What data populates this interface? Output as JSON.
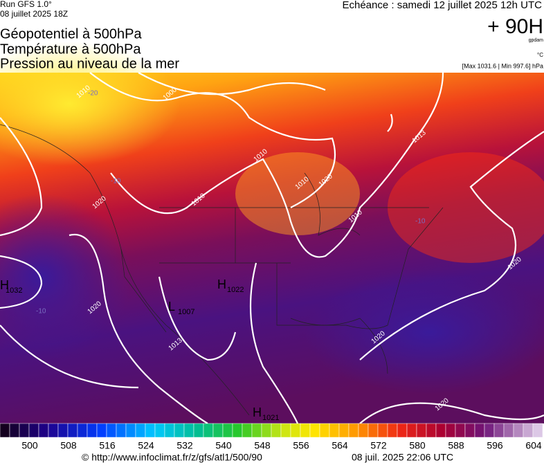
{
  "header": {
    "run": "Run GFS 1.0°",
    "run_date": "08 juillet 2025 18Z",
    "titles": [
      "Géopotentiel à 500hPa",
      "Température à 500hPa",
      "Pression au niveau de la mer"
    ],
    "valid": "Echéance : samedi 12 juillet 2025 12h UTC",
    "lead": "+ 90H",
    "unit_geo": "gpdam",
    "unit_temp": "°C",
    "range": "[Max 1031.6 | Min 997.6] hPa"
  },
  "map": {
    "centers": [
      {
        "letter": "H",
        "value": "1032"
      },
      {
        "letter": "L",
        "value": "1007"
      },
      {
        "letter": "H",
        "value": "1022"
      },
      {
        "letter": "H",
        "value": "1021"
      }
    ],
    "isobar_labels": [
      "1000",
      "1010",
      "1010",
      "1020",
      "1013",
      "1010",
      "1010",
      "1010",
      "1020",
      "1020",
      "1020",
      "1020",
      "1013",
      "1020"
    ],
    "temperature_labels": [
      "-20",
      "-10",
      "-10",
      "-10"
    ]
  },
  "colorbar": {
    "labels": [
      "500",
      "508",
      "516",
      "524",
      "532",
      "540",
      "548",
      "556",
      "564",
      "572",
      "580",
      "588",
      "596",
      "604"
    ]
  },
  "footer": {
    "source": "© http://www.infoclimat.fr/z/gfs/atl1/500/90",
    "generated": "08 juil. 2025 22:06 UTC"
  }
}
